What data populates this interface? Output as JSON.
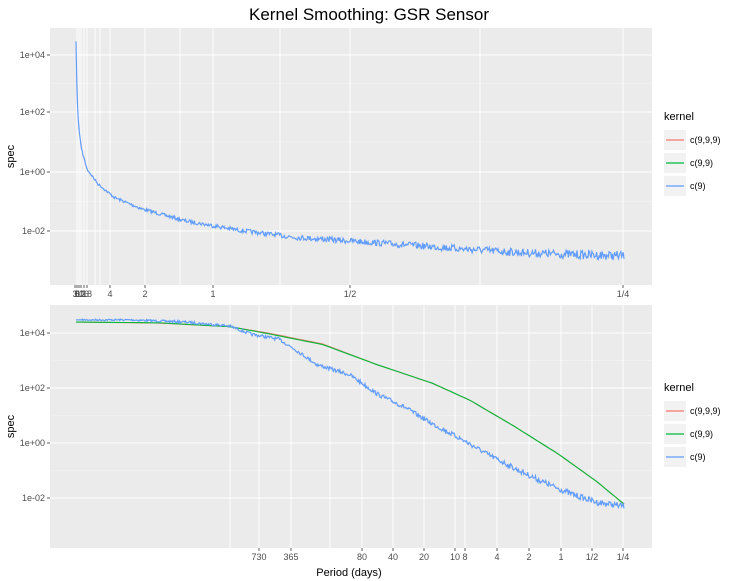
{
  "title": "Kernel Smoothing: GSR Sensor",
  "chart_data": [
    {
      "type": "line",
      "panel": "top",
      "ylabel": "spec",
      "xlabel": "",
      "y_scale": "log10",
      "ylim": [
        0.0003,
        100000
      ],
      "y_ticks": [
        "1e+04",
        "1e+02",
        "1e+00",
        "1e-02"
      ],
      "x_ticks": [
        "3",
        "6",
        "10",
        "12",
        "16",
        "18",
        "4",
        "2",
        "1",
        "1/2",
        "1/4"
      ],
      "legend": {
        "title": "kernel",
        "placement": "right",
        "entries": [
          {
            "label": "c(9,9,9)",
            "color": "#F8766D"
          },
          {
            "label": "c(9,9)",
            "color": "#00BA38"
          },
          {
            "label": "c(9)",
            "color": "#619CFF"
          }
        ]
      },
      "series": [
        {
          "color": "#619CFF",
          "points": [
            [
              0.0,
              30000
            ],
            [
              0.002,
              300
            ],
            [
              0.005,
              30
            ],
            [
              0.01,
              5
            ],
            [
              0.02,
              1
            ],
            [
              0.04,
              0.3
            ],
            [
              0.07,
              0.1
            ],
            [
              0.12,
              0.04
            ],
            [
              0.2,
              0.015
            ],
            [
              0.3,
              0.007
            ],
            [
              0.4,
              0.004
            ],
            [
              0.5,
              0.003
            ],
            [
              0.6,
              0.0022
            ],
            [
              0.7,
              0.0016
            ],
            [
              0.8,
              0.0012
            ],
            [
              0.9,
              0.001
            ],
            [
              1.0,
              0.0009
            ]
          ],
          "noise": 0.18
        }
      ]
    },
    {
      "type": "line",
      "panel": "bottom",
      "ylabel": "spec",
      "xlabel": "Period (days)",
      "y_scale": "log10",
      "x_scale": "log",
      "ylim": [
        0.0003,
        200000
      ],
      "y_ticks": [
        "1e+04",
        "1e+02",
        "1e+00",
        "1e-02"
      ],
      "x_ticks": [
        "730",
        "365",
        "80",
        "40",
        "20",
        "10",
        "8",
        "4",
        "2",
        "1",
        "1/2",
        "1/4"
      ],
      "legend": {
        "title": "kernel",
        "placement": "right",
        "entries": [
          {
            "label": "c(9,9,9)",
            "color": "#F8766D"
          },
          {
            "label": "c(9,9)",
            "color": "#00BA38"
          },
          {
            "label": "c(9)",
            "color": "#619CFF"
          }
        ]
      },
      "series": [
        {
          "color": "#F8766D",
          "points": [
            [
              0.0,
              25000
            ],
            [
              0.15,
              23000
            ],
            [
              0.28,
              17000
            ],
            [
              0.35,
              10000
            ],
            [
              0.45,
              4000
            ],
            [
              0.55,
              700
            ],
            [
              0.65,
              150
            ],
            [
              0.72,
              35
            ],
            [
              0.8,
              4
            ],
            [
              0.88,
              0.4
            ],
            [
              0.95,
              0.04
            ],
            [
              1.0,
              0.006
            ]
          ],
          "noise": 0
        },
        {
          "color": "#00BA38",
          "points": [
            [
              0.0,
              25000
            ],
            [
              0.15,
              23500
            ],
            [
              0.28,
              17000
            ],
            [
              0.35,
              9500
            ],
            [
              0.45,
              3800
            ],
            [
              0.55,
              700
            ],
            [
              0.65,
              150
            ],
            [
              0.72,
              35
            ],
            [
              0.8,
              4
            ],
            [
              0.88,
              0.4
            ],
            [
              0.95,
              0.04
            ],
            [
              1.0,
              0.006
            ]
          ],
          "noise": 0
        },
        {
          "color": "#619CFF",
          "points": [
            [
              0.0,
              30000
            ],
            [
              0.1,
              30000
            ],
            [
              0.2,
              25000
            ],
            [
              0.28,
              18000
            ],
            [
              0.32,
              9000
            ],
            [
              0.37,
              6000
            ],
            [
              0.4,
              2500
            ],
            [
              0.44,
              700
            ],
            [
              0.5,
              300
            ],
            [
              0.55,
              60
            ],
            [
              0.6,
              20
            ],
            [
              0.65,
              5
            ],
            [
              0.7,
              1.5
            ],
            [
              0.75,
              0.4
            ],
            [
              0.8,
              0.12
            ],
            [
              0.85,
              0.04
            ],
            [
              0.9,
              0.015
            ],
            [
              0.95,
              0.007
            ],
            [
              1.0,
              0.005
            ]
          ],
          "noise": 0.12
        }
      ]
    }
  ]
}
